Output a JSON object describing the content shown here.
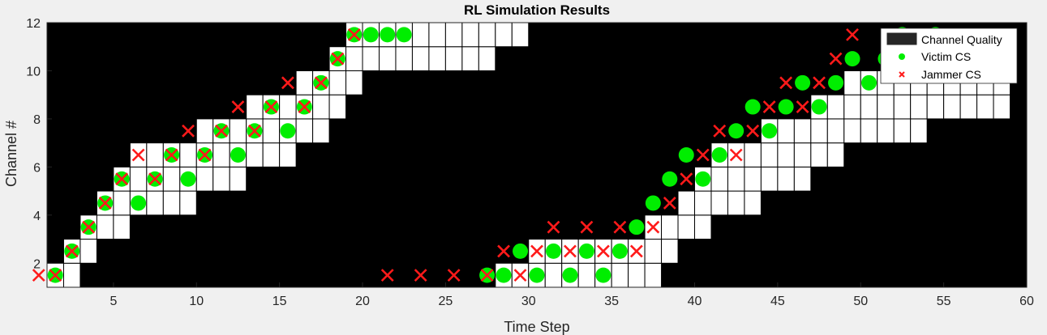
{
  "chart_data": {
    "type": "heatmap",
    "title": "RL Simulation Results",
    "xlabel": "Time Step",
    "ylabel": "Channel #",
    "xlim": [
      1,
      60
    ],
    "ylim": [
      1,
      12
    ],
    "xticks": [
      5,
      10,
      15,
      20,
      25,
      30,
      35,
      40,
      45,
      50,
      55,
      60
    ],
    "yticks": [
      2,
      4,
      6,
      8,
      10,
      12
    ],
    "legend": {
      "placement": "top-right",
      "entries": [
        "Channel Quality",
        "Victim CS",
        "Jammer CS"
      ]
    },
    "colors": {
      "background": "#000000",
      "quality_cell": "#ffffff",
      "victim": "#00ee00",
      "jammer": "#ff1a1a",
      "figure_bg": "#f0f0f0"
    },
    "channel_quality": [
      {
        "t": 2,
        "ch": [
          1
        ]
      },
      {
        "t": 3,
        "ch": [
          1,
          2
        ]
      },
      {
        "t": 4,
        "ch": [
          2,
          3
        ]
      },
      {
        "t": 5,
        "ch": [
          3,
          4
        ]
      },
      {
        "t": 6,
        "ch": [
          3,
          4,
          5
        ]
      },
      {
        "t": 7,
        "ch": [
          4,
          5,
          6
        ]
      },
      {
        "t": 8,
        "ch": [
          4,
          5,
          6
        ]
      },
      {
        "t": 9,
        "ch": [
          4,
          5,
          6
        ]
      },
      {
        "t": 10,
        "ch": [
          4,
          5,
          6
        ]
      },
      {
        "t": 11,
        "ch": [
          5,
          6,
          7
        ]
      },
      {
        "t": 12,
        "ch": [
          5,
          6,
          7
        ]
      },
      {
        "t": 13,
        "ch": [
          5,
          6,
          7
        ]
      },
      {
        "t": 14,
        "ch": [
          6,
          7,
          8
        ]
      },
      {
        "t": 15,
        "ch": [
          6,
          7,
          8
        ]
      },
      {
        "t": 16,
        "ch": [
          6,
          7,
          8
        ]
      },
      {
        "t": 17,
        "ch": [
          7,
          8,
          9
        ]
      },
      {
        "t": 18,
        "ch": [
          7,
          8,
          9
        ]
      },
      {
        "t": 19,
        "ch": [
          8,
          9,
          10
        ]
      },
      {
        "t": 20,
        "ch": [
          9,
          10,
          11
        ]
      },
      {
        "t": 21,
        "ch": [
          10,
          11
        ]
      },
      {
        "t": 22,
        "ch": [
          10,
          11
        ]
      },
      {
        "t": 23,
        "ch": [
          10,
          11
        ]
      },
      {
        "t": 24,
        "ch": [
          10,
          11
        ]
      },
      {
        "t": 25,
        "ch": [
          10,
          11
        ]
      },
      {
        "t": 26,
        "ch": [
          10,
          11
        ]
      },
      {
        "t": 27,
        "ch": [
          10,
          11
        ]
      },
      {
        "t": 28,
        "ch": [
          10,
          11
        ]
      },
      {
        "t": 29,
        "ch": [
          11
        ]
      },
      {
        "t": 30,
        "ch": [
          11
        ]
      },
      {
        "t": 29,
        "ch": [
          1
        ]
      },
      {
        "t": 30,
        "ch": [
          1
        ]
      },
      {
        "t": 31,
        "ch": [
          1,
          2
        ]
      },
      {
        "t": 32,
        "ch": [
          1,
          2
        ]
      },
      {
        "t": 33,
        "ch": [
          1,
          2
        ]
      },
      {
        "t": 34,
        "ch": [
          1,
          2
        ]
      },
      {
        "t": 35,
        "ch": [
          1,
          2
        ]
      },
      {
        "t": 36,
        "ch": [
          1,
          2
        ]
      },
      {
        "t": 37,
        "ch": [
          1,
          2
        ]
      },
      {
        "t": 38,
        "ch": [
          1,
          2,
          3
        ]
      },
      {
        "t": 39,
        "ch": [
          2,
          3
        ]
      },
      {
        "t": 40,
        "ch": [
          3,
          4
        ]
      },
      {
        "t": 41,
        "ch": [
          3,
          4,
          5
        ]
      },
      {
        "t": 42,
        "ch": [
          4,
          5,
          6
        ]
      },
      {
        "t": 43,
        "ch": [
          4,
          5,
          6
        ]
      },
      {
        "t": 44,
        "ch": [
          4,
          5,
          6
        ]
      },
      {
        "t": 45,
        "ch": [
          5,
          6,
          7
        ]
      },
      {
        "t": 46,
        "ch": [
          5,
          6,
          7
        ]
      },
      {
        "t": 47,
        "ch": [
          5,
          6,
          7
        ]
      },
      {
        "t": 48,
        "ch": [
          6,
          7,
          8
        ]
      },
      {
        "t": 49,
        "ch": [
          6,
          7,
          8
        ]
      },
      {
        "t": 50,
        "ch": [
          7,
          8,
          9
        ]
      },
      {
        "t": 51,
        "ch": [
          7,
          8,
          9
        ]
      },
      {
        "t": 52,
        "ch": [
          7,
          8,
          9
        ]
      },
      {
        "t": 53,
        "ch": [
          7,
          8,
          9
        ]
      },
      {
        "t": 54,
        "ch": [
          7,
          8,
          9
        ]
      },
      {
        "t": 55,
        "ch": [
          8,
          9
        ]
      },
      {
        "t": 56,
        "ch": [
          8,
          9
        ]
      },
      {
        "t": 57,
        "ch": [
          8,
          9,
          10
        ]
      },
      {
        "t": 58,
        "ch": [
          8,
          9,
          10
        ]
      },
      {
        "t": 59,
        "ch": [
          8,
          9,
          10
        ]
      }
    ],
    "victim_cs": [
      {
        "t": 2,
        "ch": 1
      },
      {
        "t": 3,
        "ch": 2
      },
      {
        "t": 4,
        "ch": 3
      },
      {
        "t": 5,
        "ch": 4
      },
      {
        "t": 6,
        "ch": 5
      },
      {
        "t": 7,
        "ch": 4
      },
      {
        "t": 8,
        "ch": 5
      },
      {
        "t": 9,
        "ch": 6
      },
      {
        "t": 10,
        "ch": 5
      },
      {
        "t": 11,
        "ch": 6
      },
      {
        "t": 12,
        "ch": 7
      },
      {
        "t": 13,
        "ch": 6
      },
      {
        "t": 14,
        "ch": 7
      },
      {
        "t": 15,
        "ch": 8
      },
      {
        "t": 16,
        "ch": 7
      },
      {
        "t": 17,
        "ch": 8
      },
      {
        "t": 18,
        "ch": 9
      },
      {
        "t": 19,
        "ch": 10
      },
      {
        "t": 20,
        "ch": 11
      },
      {
        "t": 21,
        "ch": 11
      },
      {
        "t": 22,
        "ch": 11
      },
      {
        "t": 23,
        "ch": 11
      },
      {
        "t": 28,
        "ch": 1
      },
      {
        "t": 29,
        "ch": 1
      },
      {
        "t": 30,
        "ch": 2
      },
      {
        "t": 31,
        "ch": 1
      },
      {
        "t": 32,
        "ch": 2
      },
      {
        "t": 33,
        "ch": 1
      },
      {
        "t": 34,
        "ch": 2
      },
      {
        "t": 35,
        "ch": 1
      },
      {
        "t": 36,
        "ch": 2
      },
      {
        "t": 37,
        "ch": 3
      },
      {
        "t": 38,
        "ch": 4
      },
      {
        "t": 39,
        "ch": 5
      },
      {
        "t": 40,
        "ch": 6
      },
      {
        "t": 41,
        "ch": 5
      },
      {
        "t": 42,
        "ch": 6
      },
      {
        "t": 43,
        "ch": 7
      },
      {
        "t": 44,
        "ch": 8
      },
      {
        "t": 45,
        "ch": 7
      },
      {
        "t": 46,
        "ch": 8
      },
      {
        "t": 47,
        "ch": 9
      },
      {
        "t": 48,
        "ch": 8
      },
      {
        "t": 49,
        "ch": 9
      },
      {
        "t": 50,
        "ch": 10
      },
      {
        "t": 51,
        "ch": 9
      },
      {
        "t": 52,
        "ch": 10
      },
      {
        "t": 53,
        "ch": 11
      },
      {
        "t": 54,
        "ch": 10
      },
      {
        "t": 55,
        "ch": 11
      },
      {
        "t": 56,
        "ch": 10
      }
    ],
    "jammer_cs": [
      {
        "t": 1,
        "ch": 1
      },
      {
        "t": 2,
        "ch": 1
      },
      {
        "t": 3,
        "ch": 2
      },
      {
        "t": 4,
        "ch": 3
      },
      {
        "t": 5,
        "ch": 4
      },
      {
        "t": 6,
        "ch": 5
      },
      {
        "t": 7,
        "ch": 6
      },
      {
        "t": 8,
        "ch": 5
      },
      {
        "t": 9,
        "ch": 6
      },
      {
        "t": 10,
        "ch": 7
      },
      {
        "t": 11,
        "ch": 6
      },
      {
        "t": 12,
        "ch": 7
      },
      {
        "t": 13,
        "ch": 8
      },
      {
        "t": 14,
        "ch": 7
      },
      {
        "t": 15,
        "ch": 8
      },
      {
        "t": 16,
        "ch": 9
      },
      {
        "t": 17,
        "ch": 8
      },
      {
        "t": 18,
        "ch": 9
      },
      {
        "t": 19,
        "ch": 10
      },
      {
        "t": 20,
        "ch": 11
      },
      {
        "t": 22,
        "ch": 1
      },
      {
        "t": 24,
        "ch": 1
      },
      {
        "t": 26,
        "ch": 1
      },
      {
        "t": 28,
        "ch": 1
      },
      {
        "t": 29,
        "ch": 2
      },
      {
        "t": 30,
        "ch": 1
      },
      {
        "t": 31,
        "ch": 2
      },
      {
        "t": 32,
        "ch": 3
      },
      {
        "t": 33,
        "ch": 2
      },
      {
        "t": 34,
        "ch": 3
      },
      {
        "t": 35,
        "ch": 2
      },
      {
        "t": 36,
        "ch": 3
      },
      {
        "t": 37,
        "ch": 2
      },
      {
        "t": 38,
        "ch": 3
      },
      {
        "t": 39,
        "ch": 4
      },
      {
        "t": 40,
        "ch": 5
      },
      {
        "t": 41,
        "ch": 6
      },
      {
        "t": 42,
        "ch": 7
      },
      {
        "t": 43,
        "ch": 6
      },
      {
        "t": 44,
        "ch": 7
      },
      {
        "t": 45,
        "ch": 8
      },
      {
        "t": 46,
        "ch": 9
      },
      {
        "t": 47,
        "ch": 8
      },
      {
        "t": 48,
        "ch": 9
      },
      {
        "t": 49,
        "ch": 10
      },
      {
        "t": 50,
        "ch": 11
      },
      {
        "t": 54,
        "ch": 11
      },
      {
        "t": 55,
        "ch": 11
      }
    ]
  }
}
